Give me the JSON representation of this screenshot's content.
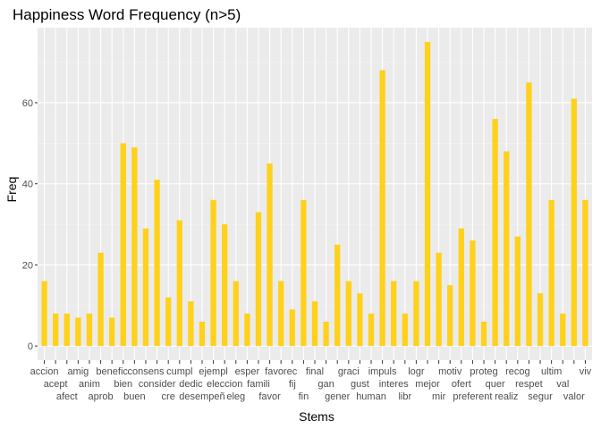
{
  "chart_data": {
    "type": "bar",
    "title": "Happiness Word Frequency (n>5)",
    "xlabel": "Stems",
    "ylabel": "Freq",
    "ylim": [
      -3.5,
      78.5
    ],
    "yticks": [
      0,
      20,
      40,
      60
    ],
    "grid": true,
    "legend": "none",
    "bar_color": "#FFD11A",
    "panel_color": "#EBEBEB",
    "categories": [
      "accion",
      "acept",
      "afect",
      "amig",
      "anim",
      "aprob",
      "benefic",
      "bien",
      "buen",
      "consens",
      "consider",
      "cre",
      "cumpl",
      "dedic",
      "desempeñ",
      "ejempl",
      "eleccion",
      "eleg",
      "esper",
      "famili",
      "favor",
      "favorec",
      "fij",
      "fin",
      "final",
      "gan",
      "gener",
      "graci",
      "gust",
      "human",
      "impuls",
      "interes",
      "libr",
      "logr",
      "mejor",
      "mir",
      "motiv",
      "ofert",
      "preferent",
      "proteg",
      "quer",
      "realiz",
      "recog",
      "respet",
      "segur",
      "ultim",
      "val",
      "valor",
      "viv"
    ],
    "values": [
      16,
      8,
      8,
      7,
      8,
      23,
      7,
      50,
      49,
      29,
      41,
      12,
      31,
      11,
      6,
      36,
      30,
      16,
      8,
      33,
      45,
      16,
      9,
      36,
      11,
      6,
      25,
      16,
      13,
      8,
      68,
      16,
      8,
      16,
      75,
      23,
      15,
      29,
      26,
      6,
      56,
      48,
      27,
      65,
      13,
      36,
      8,
      61,
      36
    ]
  }
}
